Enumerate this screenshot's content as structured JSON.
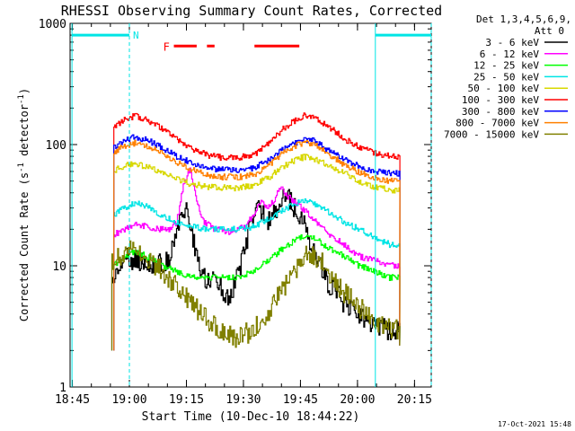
{
  "chart_data": {
    "type": "line",
    "title": "RHESSI Observing Summary Count Rates, Corrected",
    "xlabel": "Start Time (10-Dec-10 18:44:22)",
    "ylabel_parts": [
      "Corrected Count Rate (s",
      "-1",
      " detector",
      "-1",
      ")"
    ],
    "y_scale": "log",
    "ylim": [
      1,
      1000
    ],
    "xlim_minutes": [
      0,
      95
    ],
    "x_ticks": [
      {
        "label": "18:45",
        "minute": 0.6
      },
      {
        "label": "19:00",
        "minute": 15.6
      },
      {
        "label": "19:15",
        "minute": 30.6
      },
      {
        "label": "19:30",
        "minute": 45.6
      },
      {
        "label": "19:45",
        "minute": 60.6
      },
      {
        "label": "20:00",
        "minute": 75.6
      },
      {
        "label": "20:15",
        "minute": 90.6
      }
    ],
    "y_ticks": [
      {
        "label": "1",
        "value": 1
      },
      {
        "label": "10",
        "value": 10
      },
      {
        "label": "100",
        "value": 100
      },
      {
        "label": "1000",
        "value": 1000
      }
    ],
    "legend_header": [
      "Det 1,3,4,5,6,9,",
      "Att 0"
    ],
    "legend_position": "right-outside",
    "night_marker": {
      "label": "N",
      "color": "#00e5e5",
      "y": 800,
      "segments": [
        [
          0.5,
          15.6
        ],
        [
          80.3,
          95
        ]
      ],
      "boundaries": [
        0.5,
        15.6,
        80.3,
        95
      ]
    },
    "flare_marker": {
      "label": "F",
      "color": "#ff0000",
      "y": 650,
      "label_minute": 24.5,
      "segments": [
        [
          27.3,
          33.3
        ],
        [
          36.0,
          38.0
        ],
        [
          48.5,
          60.3
        ]
      ]
    },
    "series": [
      {
        "name": "3 - 6 keV",
        "color": "#000000",
        "start_minute": 11.0,
        "end_minute": 86.7,
        "knots": [
          [
            11.0,
            7
          ],
          [
            14,
            12
          ],
          [
            18,
            11
          ],
          [
            22,
            10
          ],
          [
            26,
            11
          ],
          [
            29,
            24
          ],
          [
            30.5,
            32
          ],
          [
            32,
            18
          ],
          [
            34,
            10
          ],
          [
            36,
            7
          ],
          [
            38,
            8
          ],
          [
            40,
            6
          ],
          [
            42,
            5.5
          ],
          [
            44,
            8
          ],
          [
            46,
            14
          ],
          [
            48,
            25
          ],
          [
            50,
            30
          ],
          [
            52,
            24
          ],
          [
            54,
            28
          ],
          [
            56,
            40
          ],
          [
            58,
            33
          ],
          [
            60,
            28
          ],
          [
            62,
            20
          ],
          [
            64,
            13
          ],
          [
            66,
            10
          ],
          [
            68,
            7
          ],
          [
            70,
            6
          ],
          [
            72,
            5
          ],
          [
            74,
            4.5
          ],
          [
            76,
            4
          ],
          [
            78,
            3.5
          ],
          [
            80,
            3
          ],
          [
            82,
            3
          ],
          [
            84,
            3
          ],
          [
            86.7,
            3
          ]
        ]
      },
      {
        "name": "6 - 12 keV",
        "color": "#ff00ff",
        "start_minute": 11.5,
        "end_minute": 86.7,
        "knots": [
          [
            11.5,
            18
          ],
          [
            14,
            20
          ],
          [
            18,
            22
          ],
          [
            22,
            20
          ],
          [
            26,
            20
          ],
          [
            28,
            23
          ],
          [
            30,
            50
          ],
          [
            31.5,
            62
          ],
          [
            33,
            38
          ],
          [
            35,
            23
          ],
          [
            38,
            20
          ],
          [
            42,
            19
          ],
          [
            46,
            21
          ],
          [
            48,
            26
          ],
          [
            50,
            34
          ],
          [
            52,
            31
          ],
          [
            54,
            35
          ],
          [
            55,
            45
          ],
          [
            57,
            38
          ],
          [
            60,
            32
          ],
          [
            64,
            24
          ],
          [
            68,
            18
          ],
          [
            72,
            15
          ],
          [
            76,
            12
          ],
          [
            80,
            11
          ],
          [
            84,
            10
          ],
          [
            86.7,
            10
          ]
        ]
      },
      {
        "name": "12 - 25 keV",
        "color": "#00ff00",
        "start_minute": 11.5,
        "end_minute": 86.7,
        "knots": [
          [
            11.5,
            10
          ],
          [
            14,
            12
          ],
          [
            17,
            13
          ],
          [
            20,
            12
          ],
          [
            24,
            10
          ],
          [
            28,
            9
          ],
          [
            32,
            8
          ],
          [
            36,
            8
          ],
          [
            40,
            8
          ],
          [
            44,
            8
          ],
          [
            48,
            9
          ],
          [
            52,
            11
          ],
          [
            56,
            14
          ],
          [
            60,
            17
          ],
          [
            62,
            18
          ],
          [
            64,
            17
          ],
          [
            68,
            14
          ],
          [
            72,
            12
          ],
          [
            76,
            10
          ],
          [
            80,
            9
          ],
          [
            84,
            8
          ],
          [
            86.7,
            8
          ]
        ]
      },
      {
        "name": "25 - 50 keV",
        "color": "#00e5e5",
        "start_minute": 11.5,
        "end_minute": 86.7,
        "knots": [
          [
            11.5,
            26
          ],
          [
            14,
            30
          ],
          [
            17,
            33
          ],
          [
            20,
            31
          ],
          [
            24,
            26
          ],
          [
            28,
            23
          ],
          [
            32,
            21
          ],
          [
            36,
            20
          ],
          [
            40,
            20
          ],
          [
            44,
            20
          ],
          [
            48,
            21
          ],
          [
            52,
            24
          ],
          [
            56,
            29
          ],
          [
            60,
            33
          ],
          [
            62,
            34
          ],
          [
            64,
            33
          ],
          [
            68,
            28
          ],
          [
            72,
            23
          ],
          [
            76,
            20
          ],
          [
            80,
            17
          ],
          [
            84,
            15
          ],
          [
            86.7,
            15
          ]
        ]
      },
      {
        "name": "50 - 100 keV",
        "color": "#d8d800",
        "start_minute": 11.5,
        "end_minute": 86.7,
        "knots": [
          [
            11.5,
            60
          ],
          [
            14,
            67
          ],
          [
            17,
            70
          ],
          [
            20,
            66
          ],
          [
            24,
            58
          ],
          [
            28,
            52
          ],
          [
            32,
            47
          ],
          [
            36,
            45
          ],
          [
            40,
            44
          ],
          [
            44,
            44
          ],
          [
            48,
            46
          ],
          [
            52,
            53
          ],
          [
            56,
            66
          ],
          [
            60,
            77
          ],
          [
            62,
            79
          ],
          [
            64,
            77
          ],
          [
            68,
            67
          ],
          [
            72,
            58
          ],
          [
            76,
            50
          ],
          [
            80,
            45
          ],
          [
            84,
            42
          ],
          [
            86.7,
            42
          ]
        ]
      },
      {
        "name": "100 - 300 keV",
        "color": "#ff0000",
        "start_minute": 11.5,
        "end_minute": 86.7,
        "knots": [
          [
            11.5,
            140
          ],
          [
            14,
            160
          ],
          [
            17,
            172
          ],
          [
            20,
            162
          ],
          [
            24,
            135
          ],
          [
            28,
            110
          ],
          [
            32,
            92
          ],
          [
            36,
            82
          ],
          [
            40,
            78
          ],
          [
            44,
            78
          ],
          [
            48,
            82
          ],
          [
            52,
            100
          ],
          [
            56,
            135
          ],
          [
            60,
            165
          ],
          [
            62,
            175
          ],
          [
            64,
            170
          ],
          [
            68,
            140
          ],
          [
            72,
            112
          ],
          [
            76,
            95
          ],
          [
            80,
            85
          ],
          [
            84,
            80
          ],
          [
            86.7,
            80
          ]
        ]
      },
      {
        "name": "300 - 800 keV",
        "color": "#0000ff",
        "start_minute": 11.5,
        "end_minute": 86.7,
        "knots": [
          [
            11.5,
            95
          ],
          [
            14,
            108
          ],
          [
            17,
            115
          ],
          [
            20,
            110
          ],
          [
            24,
            95
          ],
          [
            28,
            80
          ],
          [
            32,
            70
          ],
          [
            36,
            64
          ],
          [
            40,
            62
          ],
          [
            44,
            62
          ],
          [
            48,
            64
          ],
          [
            52,
            74
          ],
          [
            56,
            92
          ],
          [
            60,
            106
          ],
          [
            62,
            110
          ],
          [
            64,
            107
          ],
          [
            68,
            90
          ],
          [
            72,
            75
          ],
          [
            76,
            66
          ],
          [
            80,
            60
          ],
          [
            84,
            58
          ],
          [
            86.7,
            58
          ]
        ]
      },
      {
        "name": "800 - 7000 keV",
        "color": "#ff8000",
        "start_minute": 11.5,
        "end_minute": 86.7,
        "knots": [
          [
            11.5,
            85
          ],
          [
            14,
            97
          ],
          [
            17,
            103
          ],
          [
            20,
            98
          ],
          [
            24,
            85
          ],
          [
            28,
            72
          ],
          [
            32,
            62
          ],
          [
            36,
            56
          ],
          [
            40,
            54
          ],
          [
            44,
            54
          ],
          [
            48,
            56
          ],
          [
            52,
            66
          ],
          [
            56,
            85
          ],
          [
            60,
            100
          ],
          [
            62,
            103
          ],
          [
            64,
            100
          ],
          [
            68,
            84
          ],
          [
            72,
            68
          ],
          [
            76,
            59
          ],
          [
            80,
            53
          ],
          [
            84,
            50
          ],
          [
            86.7,
            50
          ]
        ]
      },
      {
        "name": "7000 - 15000 keV",
        "color": "#808000",
        "start_minute": 11.0,
        "end_minute": 86.7,
        "knots": [
          [
            11.0,
            11
          ],
          [
            14,
            13
          ],
          [
            17,
            14
          ],
          [
            20,
            12
          ],
          [
            24,
            9
          ],
          [
            28,
            6.5
          ],
          [
            32,
            5
          ],
          [
            36,
            3.5
          ],
          [
            40,
            2.8
          ],
          [
            44,
            2.5
          ],
          [
            48,
            3
          ],
          [
            52,
            4
          ],
          [
            56,
            6.5
          ],
          [
            60,
            10
          ],
          [
            62,
            13
          ],
          [
            64,
            12.5
          ],
          [
            68,
            9
          ],
          [
            72,
            6
          ],
          [
            76,
            4.5
          ],
          [
            80,
            3.5
          ],
          [
            84,
            3
          ],
          [
            86.7,
            3
          ]
        ]
      }
    ]
  },
  "footer_date": "17-Oct-2021 15:48"
}
